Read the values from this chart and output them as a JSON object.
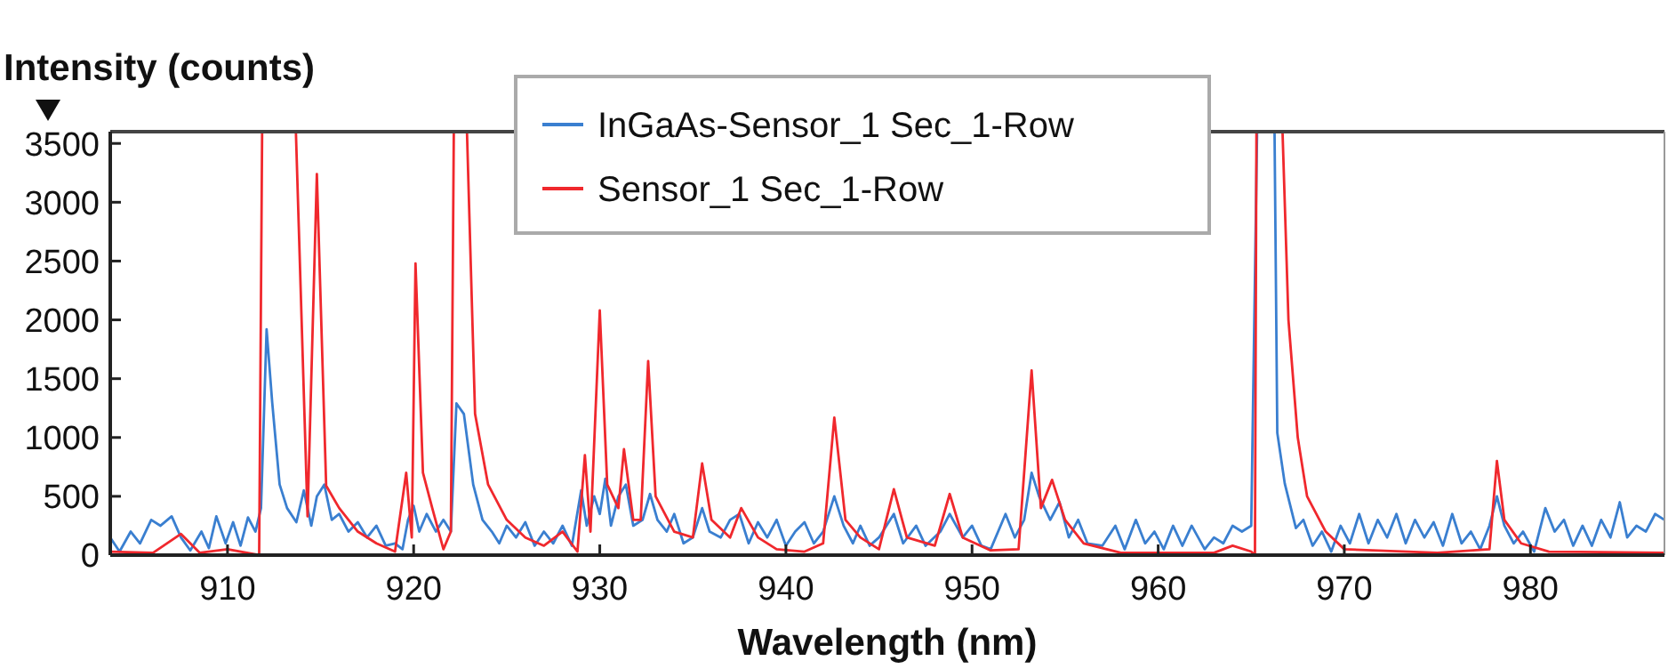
{
  "chart_data": {
    "type": "line",
    "xlabel": "Wavelength (nm)",
    "ylabel": "Intensity (counts)",
    "xlim": [
      903.7,
      987.2
    ],
    "xticks": [
      910,
      920,
      930,
      940,
      950,
      960,
      970,
      980
    ],
    "ylim": [
      0,
      3600
    ],
    "yticks": [
      0,
      500,
      1000,
      1500,
      2000,
      2500,
      3000,
      3500
    ],
    "legend": "top",
    "marker": "none",
    "line_style": "solid",
    "series": [
      {
        "name": "InGaAs-Sensor_1 Sec_1-Row",
        "color": "#3a7fd0",
        "x": [
          903.7,
          904.2,
          904.8,
          905.3,
          905.9,
          906.4,
          907,
          907.5,
          908,
          908.6,
          909,
          909.4,
          909.9,
          910.3,
          910.7,
          911.1,
          911.5,
          911.8,
          912.1,
          912.4,
          912.8,
          913.2,
          913.7,
          914.1,
          914.5,
          914.8,
          915.2,
          915.6,
          916,
          916.5,
          917,
          917.5,
          918,
          918.5,
          919,
          919.4,
          919.7,
          920,
          920.3,
          920.7,
          921.2,
          921.6,
          922,
          922.3,
          922.7,
          923.2,
          923.7,
          924.2,
          924.6,
          925,
          925.5,
          926,
          926.5,
          927,
          927.5,
          928,
          928.5,
          929,
          929.3,
          929.7,
          930,
          930.3,
          930.6,
          931,
          931.4,
          931.8,
          932.3,
          932.7,
          933.1,
          933.6,
          934,
          934.5,
          935,
          935.5,
          935.9,
          936.5,
          937,
          937.5,
          938,
          938.5,
          939,
          939.5,
          940,
          940.5,
          941,
          941.5,
          942,
          942.6,
          943.1,
          943.6,
          944,
          944.5,
          945,
          945.8,
          946.3,
          947,
          947.5,
          948.3,
          948.8,
          949.5,
          950,
          950.5,
          951,
          951.8,
          952.3,
          952.8,
          953.2,
          953.6,
          954.2,
          954.7,
          955.2,
          955.7,
          956.2,
          957,
          957.7,
          958.2,
          958.8,
          959.3,
          959.8,
          960.3,
          960.8,
          961.3,
          961.8,
          962.5,
          963,
          963.5,
          964,
          964.5,
          965,
          965.4,
          966.2,
          966.4,
          966.8,
          967.4,
          967.8,
          968.3,
          968.8,
          969.3,
          969.8,
          970.3,
          970.8,
          971.3,
          971.8,
          972.3,
          972.8,
          973.3,
          973.8,
          974.3,
          974.8,
          975.3,
          975.8,
          976.3,
          976.8,
          977.3,
          977.8,
          978.2,
          978.6,
          979.1,
          979.6,
          980.2,
          980.8,
          981.3,
          981.8,
          982.3,
          982.8,
          983.3,
          983.8,
          984.3,
          984.8,
          985.2,
          985.7,
          986.2,
          986.7,
          987.2
        ],
        "values": [
          150,
          30,
          200,
          100,
          300,
          250,
          330,
          150,
          40,
          200,
          60,
          330,
          100,
          280,
          80,
          320,
          200,
          400,
          1920,
          1300,
          600,
          400,
          280,
          550,
          250,
          500,
          600,
          300,
          350,
          200,
          280,
          150,
          250,
          80,
          100,
          50,
          300,
          420,
          200,
          350,
          200,
          300,
          200,
          1290,
          1200,
          600,
          300,
          200,
          100,
          250,
          150,
          280,
          80,
          200,
          100,
          250,
          80,
          550,
          250,
          500,
          350,
          650,
          250,
          500,
          600,
          250,
          300,
          520,
          300,
          200,
          350,
          100,
          150,
          400,
          200,
          150,
          300,
          350,
          100,
          280,
          150,
          300,
          80,
          200,
          280,
          100,
          200,
          500,
          250,
          100,
          250,
          80,
          150,
          350,
          100,
          250,
          80,
          200,
          350,
          150,
          250,
          80,
          50,
          350,
          150,
          300,
          700,
          500,
          300,
          450,
          150,
          300,
          100,
          80,
          250,
          50,
          300,
          100,
          200,
          50,
          250,
          80,
          250,
          50,
          150,
          100,
          250,
          200,
          250,
          null,
          null,
          1040,
          610,
          230,
          300,
          80,
          200,
          30,
          250,
          100,
          350,
          100,
          300,
          150,
          350,
          100,
          300,
          150,
          280,
          80,
          350,
          100,
          200,
          50,
          250,
          500,
          250,
          100,
          200,
          30,
          400,
          200,
          300,
          80,
          250,
          80,
          300,
          150,
          450,
          150,
          250,
          200,
          350,
          300
        ]
      },
      {
        "name": "Sensor_1 Sec_1-Row",
        "color": "#f0282d",
        "x": [
          903.7,
          906,
          907.5,
          908.5,
          910,
          911.7,
          911.9,
          913.5,
          914.3,
          914.8,
          915.3,
          916,
          917,
          918,
          919,
          919.6,
          919.9,
          920.1,
          920.5,
          921,
          921.6,
          922,
          922.2,
          922.7,
          923.3,
          924,
          925,
          926,
          927,
          928,
          928.8,
          929.2,
          929.5,
          930,
          930.4,
          931,
          931.3,
          931.8,
          932.2,
          932.6,
          933,
          934,
          935,
          935.5,
          936,
          937,
          937.6,
          938.5,
          939.5,
          941,
          942,
          942.6,
          943.2,
          944,
          945,
          945.8,
          946.5,
          948,
          948.8,
          949.5,
          951,
          952.5,
          953.2,
          953.7,
          954.3,
          955,
          956,
          958,
          963,
          964,
          965,
          965.2,
          965.3,
          966.5,
          967,
          967.5,
          968,
          969,
          970,
          975,
          977.8,
          978.2,
          978.6,
          979.5,
          981,
          987.2
        ],
        "values": [
          30,
          20,
          180,
          20,
          50,
          0,
          null,
          null,
          330,
          3240,
          590,
          400,
          200,
          100,
          30,
          700,
          150,
          2480,
          700,
          400,
          50,
          200,
          null,
          null,
          1200,
          600,
          300,
          150,
          80,
          200,
          30,
          850,
          200,
          2080,
          600,
          400,
          900,
          300,
          300,
          1650,
          500,
          200,
          150,
          780,
          300,
          150,
          400,
          150,
          50,
          30,
          100,
          1170,
          300,
          150,
          50,
          560,
          150,
          80,
          520,
          150,
          40,
          50,
          1570,
          400,
          640,
          300,
          100,
          20,
          20,
          80,
          30,
          0,
          null,
          null,
          2000,
          1000,
          500,
          200,
          50,
          20,
          50,
          800,
          300,
          100,
          30,
          20
        ]
      }
    ]
  }
}
